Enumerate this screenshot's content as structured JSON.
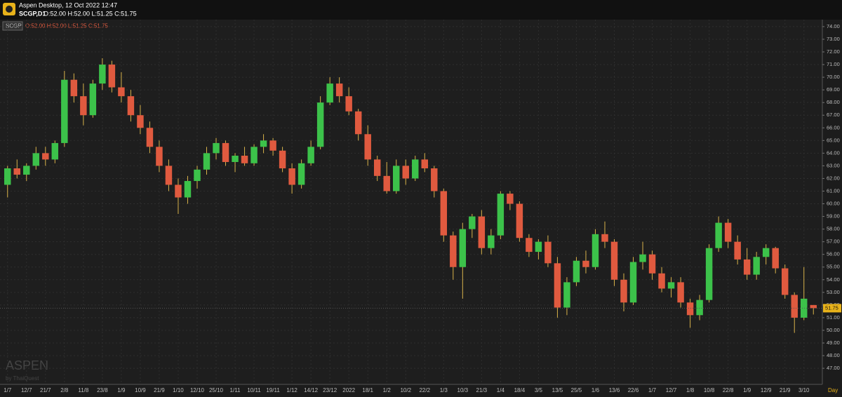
{
  "header": {
    "title": "Aspen Desktop, 12 Oct 2022 12:47",
    "symbol": "SCGP,D1",
    "ohlc": "O:52.00 H:52.00 L:51.25 C:51.75"
  },
  "chart_data": {
    "type": "candlestick",
    "symbol": "SCGP",
    "legend_text": "O:52.00 H:52.00 L:51.25 C:51.75",
    "period_label": "Day",
    "watermark": {
      "brand": "ASPEN",
      "by": "by ThaiQuest"
    },
    "up_color": "#3cc24a",
    "down_color": "#e05a3f",
    "wick_color": "#d8b24a",
    "grid": true,
    "last_price": {
      "value": 51.75,
      "label": "51.75"
    },
    "categories": [
      "1/7",
      null,
      "12/7",
      null,
      "21/7",
      null,
      "2/8",
      null,
      "11/8",
      null,
      "23/8",
      null,
      "1/9",
      null,
      "10/9",
      null,
      "21/9",
      null,
      "1/10",
      null,
      "12/10",
      null,
      "25/10",
      null,
      "1/11",
      null,
      "10/11",
      null,
      "19/11",
      null,
      "1/12",
      null,
      "14/12",
      null,
      "23/12",
      null,
      "2022",
      null,
      "18/1",
      null,
      "1/2",
      null,
      "10/2",
      null,
      "22/2",
      null,
      "1/3",
      null,
      "10/3",
      null,
      "21/3",
      null,
      "1/4",
      null,
      "18/4",
      null,
      "3/5",
      null,
      "13/5",
      null,
      "25/5",
      null,
      "1/6",
      null,
      "13/6",
      null,
      "22/6",
      null,
      "1/7",
      null,
      "12/7",
      null,
      "1/8",
      null,
      "10/8",
      null,
      "22/8",
      null,
      "1/9",
      null,
      "12/9",
      null,
      "21/9",
      null,
      "3/10",
      null
    ],
    "open": [
      61.5,
      62.8,
      62.3,
      63,
      64,
      63.5,
      64.8,
      69.8,
      68.5,
      67,
      69.5,
      71,
      69.2,
      68.5,
      67,
      66,
      64.5,
      63,
      61.5,
      60.5,
      61.8,
      62.7,
      64,
      64.8,
      63.3,
      63.8,
      63.2,
      64.5,
      65,
      64.2,
      62.8,
      61.5,
      63.2,
      64.5,
      68,
      69.5,
      68.5,
      67.3,
      65.5,
      63.5,
      62.2,
      61,
      63,
      62,
      63.5,
      62.8,
      61,
      57.5,
      55,
      58,
      59,
      56.5,
      57.5,
      60.8,
      60,
      57.3,
      56.2,
      57,
      55.3,
      51.8,
      53.8,
      55.5,
      55,
      57.6,
      57,
      54,
      52.2,
      55.4,
      56,
      54.5,
      53.3,
      53.8,
      52.2,
      51.2,
      52.4,
      56.5,
      58.5,
      57,
      55.6,
      54.4,
      55.8,
      56.5,
      54.9,
      52.8,
      51,
      52
    ],
    "high": [
      63,
      63.5,
      63.2,
      64.5,
      64.5,
      65,
      70.5,
      70.3,
      69.5,
      69.8,
      71.5,
      71.3,
      70.4,
      69,
      67.8,
      66.5,
      65,
      63.5,
      62,
      62.2,
      63,
      64.5,
      65.2,
      65,
      64,
      64.5,
      64.7,
      65.5,
      65.2,
      64.5,
      63.2,
      63.5,
      65,
      68.5,
      70,
      70,
      69.2,
      67.5,
      66.2,
      63.8,
      63.3,
      63.5,
      63.5,
      63.8,
      64,
      63,
      61.2,
      57.8,
      58.5,
      59.2,
      59.5,
      58,
      61,
      61,
      60.2,
      57.6,
      57.2,
      57.5,
      55.8,
      54.2,
      55.8,
      56.3,
      58,
      58.6,
      57.2,
      54.5,
      55.8,
      57,
      56.3,
      55,
      54.2,
      54.2,
      52.5,
      52.8,
      56.8,
      59,
      58.8,
      57.5,
      56.5,
      56.2,
      56.8,
      56.6,
      55.2,
      53,
      55,
      52
    ],
    "low": [
      60.5,
      62,
      61.8,
      62.7,
      63,
      63.2,
      64.5,
      68,
      66.2,
      66.8,
      69,
      68.8,
      68,
      66.5,
      65.5,
      64,
      62.5,
      61,
      59.2,
      60,
      61.2,
      62.3,
      63.5,
      63,
      62.5,
      63,
      63,
      64,
      63.8,
      62.5,
      60.8,
      61.2,
      63,
      64.3,
      67.8,
      68,
      67,
      65,
      63,
      61.8,
      60.8,
      60.8,
      61.5,
      61.8,
      62.5,
      60.5,
      57,
      54,
      52.5,
      57.3,
      56,
      56,
      57.2,
      59.5,
      57,
      55.8,
      55.6,
      55,
      51,
      51.2,
      53.5,
      54.5,
      54.8,
      56.5,
      53.5,
      51.5,
      52,
      54.8,
      54,
      53,
      52.6,
      51.8,
      50.2,
      50.8,
      52.2,
      56.2,
      56.5,
      55.2,
      54,
      54,
      55.2,
      54.5,
      52.5,
      49.8,
      50.8,
      51.25
    ],
    "close": [
      62.8,
      62.3,
      63,
      64,
      63.5,
      64.8,
      69.8,
      68.5,
      67,
      69.5,
      71,
      69.2,
      68.5,
      67,
      66,
      64.5,
      63,
      61.5,
      60.5,
      61.8,
      62.7,
      64,
      64.8,
      63.3,
      63.8,
      63.2,
      64.5,
      65,
      64.2,
      62.8,
      61.5,
      63.2,
      64.5,
      68,
      69.5,
      68.5,
      67.3,
      65.5,
      63.5,
      62.2,
      61,
      63,
      62,
      63.5,
      62.8,
      61,
      57.5,
      55,
      58,
      59,
      56.5,
      57.5,
      60.8,
      60,
      57.3,
      56.2,
      57,
      55.3,
      51.8,
      53.8,
      55.5,
      55,
      57.6,
      57,
      54,
      52.2,
      55.4,
      56,
      54.5,
      53.3,
      53.8,
      52.2,
      51.2,
      52.4,
      56.5,
      58.5,
      57,
      55.6,
      54.4,
      55.8,
      56.5,
      54.9,
      52.8,
      51,
      52.5,
      51.75
    ],
    "ylim": [
      45.73,
      74.55
    ],
    "yticks": [
      {
        "value": 47,
        "label": "47.00"
      },
      {
        "value": 48,
        "label": "48.00"
      },
      {
        "value": 49,
        "label": "49.00"
      },
      {
        "value": 50,
        "label": "50.00"
      },
      {
        "value": 51,
        "label": "51.00"
      },
      {
        "value": 52,
        "label": "52.00"
      },
      {
        "value": 53,
        "label": "53.00"
      },
      {
        "value": 54,
        "label": "54.00"
      },
      {
        "value": 55,
        "label": "55.00"
      },
      {
        "value": 56,
        "label": "56.00"
      },
      {
        "value": 57,
        "label": "57.00"
      },
      {
        "value": 58,
        "label": "58.00"
      },
      {
        "value": 59,
        "label": "59.00"
      },
      {
        "value": 60,
        "label": "60.00"
      },
      {
        "value": 61,
        "label": "61.00"
      },
      {
        "value": 62,
        "label": "62.00"
      },
      {
        "value": 63,
        "label": "63.00"
      },
      {
        "value": 64,
        "label": "64.00"
      },
      {
        "value": 65,
        "label": "65.00"
      },
      {
        "value": 66,
        "label": "66.00"
      },
      {
        "value": 67,
        "label": "67.00"
      },
      {
        "value": 68,
        "label": "68.00"
      },
      {
        "value": 69,
        "label": "69.00"
      },
      {
        "value": 70,
        "label": "70.00"
      },
      {
        "value": 71,
        "label": "71.00"
      },
      {
        "value": 72,
        "label": "72.00"
      },
      {
        "value": 73,
        "label": "73.00"
      },
      {
        "value": 74,
        "label": "74.00"
      }
    ]
  }
}
